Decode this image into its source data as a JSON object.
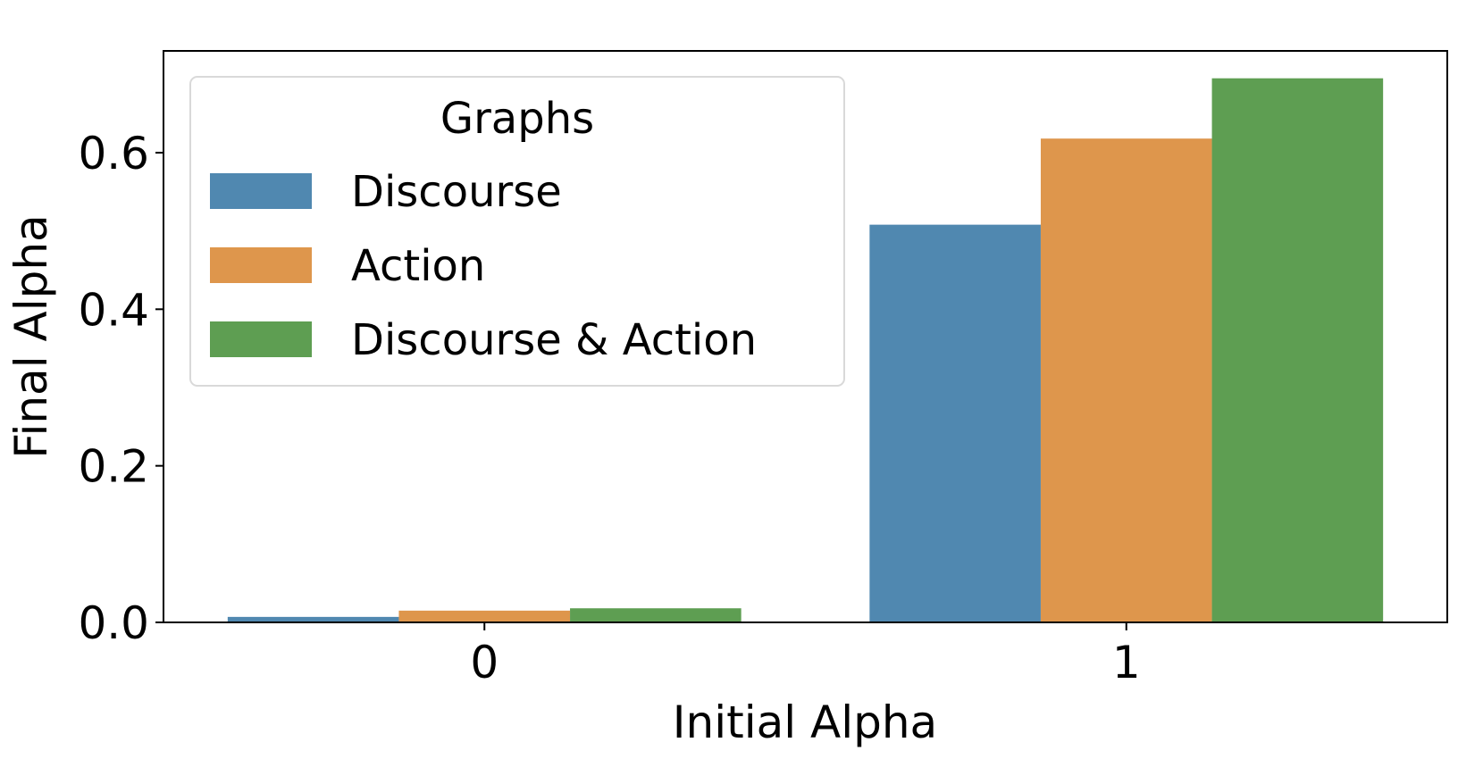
{
  "chart_data": {
    "type": "bar",
    "xlabel": "Initial Alpha",
    "ylabel": "Final Alpha",
    "categories": [
      "0",
      "1"
    ],
    "ylim": [
      0,
      0.73
    ],
    "yticks": [
      "0.0",
      "0.2",
      "0.4",
      "0.6"
    ],
    "ytick_values": [
      0.0,
      0.2,
      0.4,
      0.6
    ],
    "grid": false,
    "legend": {
      "title": "Graphs",
      "placement": "top-left"
    },
    "series": [
      {
        "name": "Discourse",
        "color": "#5088b0",
        "values": [
          0.007,
          0.508
        ]
      },
      {
        "name": "Action",
        "color": "#de964c",
        "values": [
          0.015,
          0.618
        ]
      },
      {
        "name": "Discourse & Action",
        "color": "#5e9e52",
        "values": [
          0.018,
          0.695
        ]
      }
    ]
  }
}
